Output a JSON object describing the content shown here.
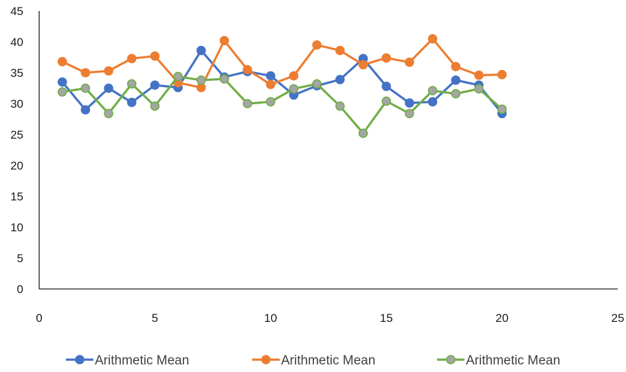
{
  "chart_data": {
    "type": "scatter",
    "title": "",
    "xlabel": "",
    "ylabel": "",
    "xlim": [
      0,
      25
    ],
    "ylim": [
      0,
      45
    ],
    "xticks": [
      0,
      5,
      10,
      15,
      20,
      25
    ],
    "yticks": [
      0,
      5,
      10,
      15,
      20,
      25,
      30,
      35,
      40,
      45
    ],
    "grid": false,
    "legend": "bottom",
    "x": [
      1,
      2,
      3,
      4,
      5,
      6,
      7,
      8,
      9,
      10,
      11,
      12,
      13,
      14,
      15,
      16,
      17,
      18,
      19,
      20
    ],
    "series": [
      {
        "name": "Arithmetic Mean",
        "color": "#4472C4",
        "values": [
          33.5,
          29.0,
          32.5,
          30.2,
          33.0,
          32.6,
          38.6,
          34.3,
          35.2,
          34.5,
          31.4,
          32.9,
          33.9,
          37.3,
          32.8,
          30.1,
          30.3,
          33.8,
          33.0,
          28.4
        ]
      },
      {
        "name": "Arithmetic Mean",
        "color": "#ED7D31",
        "values": [
          36.8,
          35.0,
          35.3,
          37.3,
          37.7,
          33.4,
          32.6,
          40.2,
          35.5,
          33.1,
          34.5,
          39.5,
          38.6,
          36.3,
          37.4,
          36.7,
          40.5,
          36.0,
          34.6,
          34.7
        ]
      },
      {
        "name": "Arithmetic Mean",
        "color": "#70AD47",
        "marker_fill": "#A5A5A5",
        "values": [
          31.9,
          32.5,
          28.4,
          33.2,
          29.6,
          34.4,
          33.8,
          34.0,
          30.0,
          30.3,
          32.4,
          33.2,
          29.6,
          25.2,
          30.4,
          28.4,
          32.1,
          31.6,
          32.4,
          29.1
        ]
      }
    ]
  }
}
